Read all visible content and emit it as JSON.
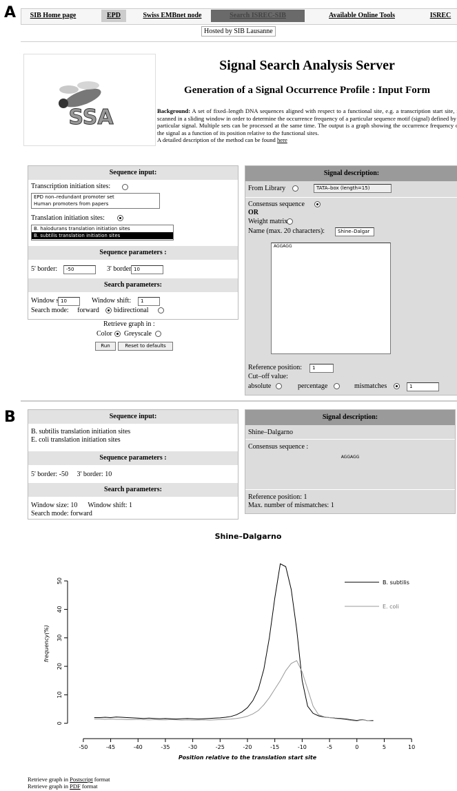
{
  "panel_labels": [
    "A",
    "B"
  ],
  "nav": {
    "items": [
      "SIB Home page",
      "EPD",
      "Swiss EMBnet node",
      "Search ISREC-SIB",
      "Available Online Tools",
      "ISREC"
    ],
    "hosted": "Hosted by SIB Lausanne"
  },
  "header": {
    "logo": "SSA",
    "title": "Signal Search Analysis Server",
    "subtitle": "Generation of a Signal Occurrence Profile : Input Form",
    "background_label": "Background:",
    "background_text": "A set of fixed–length DNA sequences aligned with respect to a functional site, e.g. a transcription start site, is scanned in a sliding window in order to determine the occurrence frequency of a particular sequence motif (signal) defined by a particular signal. Multiple sets can be processed at the same time. The output is a graph showing the occurrence frequency of the signal as a function of its position relative to the functional sites.",
    "description": "A detailed description of the method can be found",
    "link": "here"
  },
  "form": {
    "sequence_input": {
      "heading": "Sequence input:",
      "transcription_label": "Transcription initiation sites:",
      "transcription_checked": false,
      "transcription_options": [
        "EPD non–redundant promoter set",
        "Human promoters from papers"
      ],
      "translation_label": "Translation initiation sites:",
      "translation_checked": true,
      "translation_options": [
        "B. halodurans translation initiation sites",
        "B. subtilis translation initiation sites"
      ]
    },
    "sequence_parameters": {
      "heading": "Sequence parameters :",
      "border5_label": "5' border:",
      "border5": -50,
      "border3_label": "3' border:",
      "border3": 10
    },
    "search_parameters": {
      "heading": "Search parameters:",
      "window_size_label": "Window size:",
      "window_size": 10,
      "window_shift_label": "Window shift:",
      "window_shift": 1,
      "mode_label": "Search mode:",
      "forward_label": "forward",
      "forward_checked": true,
      "bidirectional_label": "bidirectional",
      "bidirectional_checked": false
    },
    "retrieve": {
      "label": "Retrieve graph in :",
      "color_label": "Color",
      "color_checked": true,
      "grey_label": "Greyscale",
      "grey_checked": false,
      "run": "Run",
      "reset": "Reset to defaults"
    },
    "signal": {
      "heading": "Signal description:",
      "library_label": "From Library",
      "library_checked": false,
      "library_value": "TATA–box (length=15)",
      "consensus_label": "Consensus sequence",
      "consensus_checked": true,
      "or": "OR",
      "matrix_label": "Weight matrix",
      "matrix_checked": false,
      "name_label": "Name (max. 20 characters):",
      "name_value": "Shine–Dalgar",
      "sequence": "AGGAGG",
      "ref_label": "Reference position:",
      "ref_value": 1,
      "cutoff_label": "Cut–off value:",
      "absolute_label": "absolute",
      "absolute_checked": false,
      "percentage_label": "percentage",
      "percentage_checked": false,
      "mismatches_label": "mismatches",
      "mismatches_checked": true,
      "mismatches_value": 1
    }
  },
  "summary": {
    "sequence_input": {
      "heading": "Sequence input:",
      "lines": [
        "B. subtilis translation initiation sites",
        "E. coli translation initiation sites"
      ]
    },
    "sequence_parameters": {
      "heading": "Sequence parameters :",
      "border5_label": "5' border:",
      "border5": -50,
      "border3_label": "3' border:",
      "border3": 10
    },
    "search_parameters": {
      "heading": "Search parameters:",
      "window_size_label": "Window size:",
      "window_size": 10,
      "window_shift_label": "Window shift:",
      "window_shift": 1,
      "mode_label": "Search mode:",
      "mode": "forward"
    },
    "signal": {
      "heading": "Signal description:",
      "name": "Shine–Dalgarno",
      "consensus_label": "Consensus sequence :",
      "sequence": "AGGAGG",
      "ref_label": "Reference position:",
      "ref_value": 1,
      "mismatch_label": "Max. number of mismatches:",
      "mismatch_value": 1
    }
  },
  "chart_data": {
    "type": "line",
    "title": "Shine–Dalgarno",
    "xlabel": "Position relative to the translation start site",
    "ylabel": "frequency(%)",
    "x": [
      -48,
      -47,
      -46,
      -45,
      -44,
      -43,
      -42,
      -41,
      -40,
      -39,
      -38,
      -37,
      -36,
      -35,
      -34,
      -33,
      -32,
      -31,
      -30,
      -29,
      -28,
      -27,
      -26,
      -25,
      -24,
      -23,
      -22,
      -21,
      -20,
      -19,
      -18,
      -17,
      -16,
      -15,
      -14,
      -13,
      -12,
      -11,
      -10,
      -9,
      -8,
      -7,
      -6,
      -5,
      -4,
      -3,
      -2,
      -1,
      0,
      1,
      2,
      3
    ],
    "series": [
      {
        "name": "B. subtilis",
        "color": "#000000",
        "values": [
          2.0,
          2.0,
          2.1,
          2.0,
          2.2,
          2.1,
          2.0,
          1.9,
          1.8,
          1.7,
          1.8,
          1.7,
          1.6,
          1.7,
          1.6,
          1.5,
          1.6,
          1.7,
          1.6,
          1.5,
          1.6,
          1.7,
          1.8,
          1.9,
          2.1,
          2.4,
          3.0,
          4.0,
          5.5,
          8.0,
          12,
          19,
          30,
          44,
          56,
          55,
          47,
          33,
          15,
          6,
          3.5,
          2.6,
          2.2,
          2.0,
          1.8,
          1.7,
          1.5,
          1.2,
          1.0,
          1.3,
          0.9,
          1.0
        ]
      },
      {
        "name": "E. coli",
        "color": "#999999",
        "values": [
          1.5,
          1.5,
          1.4,
          1.5,
          1.4,
          1.4,
          1.3,
          1.3,
          1.4,
          1.3,
          1.2,
          1.3,
          1.2,
          1.2,
          1.3,
          1.2,
          1.1,
          1.2,
          1.1,
          1.1,
          1.2,
          1.1,
          1.2,
          1.3,
          1.4,
          1.5,
          1.7,
          2.0,
          2.5,
          3.3,
          4.5,
          6.5,
          9,
          12,
          15,
          18.5,
          21,
          22,
          18,
          12,
          6,
          3,
          2.3,
          2.0,
          1.7,
          1.5,
          1.3,
          1.0,
          0.8,
          1.2,
          0.9,
          0.8
        ]
      }
    ],
    "xlim": [
      -52,
      12
    ],
    "ylim": [
      -2,
      58
    ],
    "xticks": [
      -50,
      -45,
      -40,
      -35,
      -30,
      -25,
      -20,
      -15,
      -10,
      -5,
      0,
      5,
      10
    ],
    "yticks": [
      0,
      10,
      20,
      30,
      40,
      50
    ],
    "grid": false,
    "legend": "topright"
  },
  "footer": [
    {
      "prefix": "Retrieve graph in",
      "link": "Postscript",
      "suffix": "format"
    },
    {
      "prefix": "Retrieve graph in",
      "link": "PDF",
      "suffix": "format"
    }
  ]
}
